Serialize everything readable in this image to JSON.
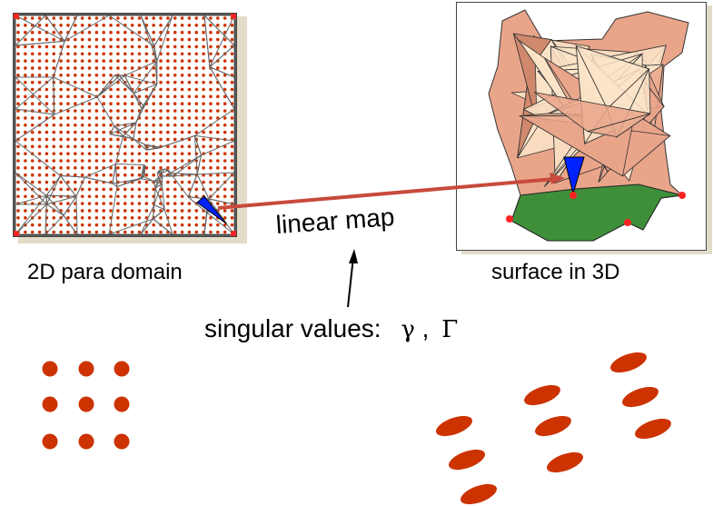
{
  "labels": {
    "domain": "2D para domain",
    "surface": "surface in 3D",
    "map": "linear map",
    "singular_values": "singular values:",
    "gamma": "γ",
    "comma": ",",
    "Gamma": "Γ"
  },
  "colors": {
    "dot": "#cc3300",
    "mesh_line": "#666666",
    "corner": "#ff2222",
    "face_light": "#fbe4c8",
    "face_mid": "#e9a58a",
    "face_dark": "#c97a5e",
    "neck": "#3f8f3a",
    "triangle": "#0022ff",
    "arrow": "#c84a3c",
    "shadow": "#e2dcc8"
  },
  "blobs": {
    "dots": "circles",
    "ellipses": "stretched ellipses"
  }
}
